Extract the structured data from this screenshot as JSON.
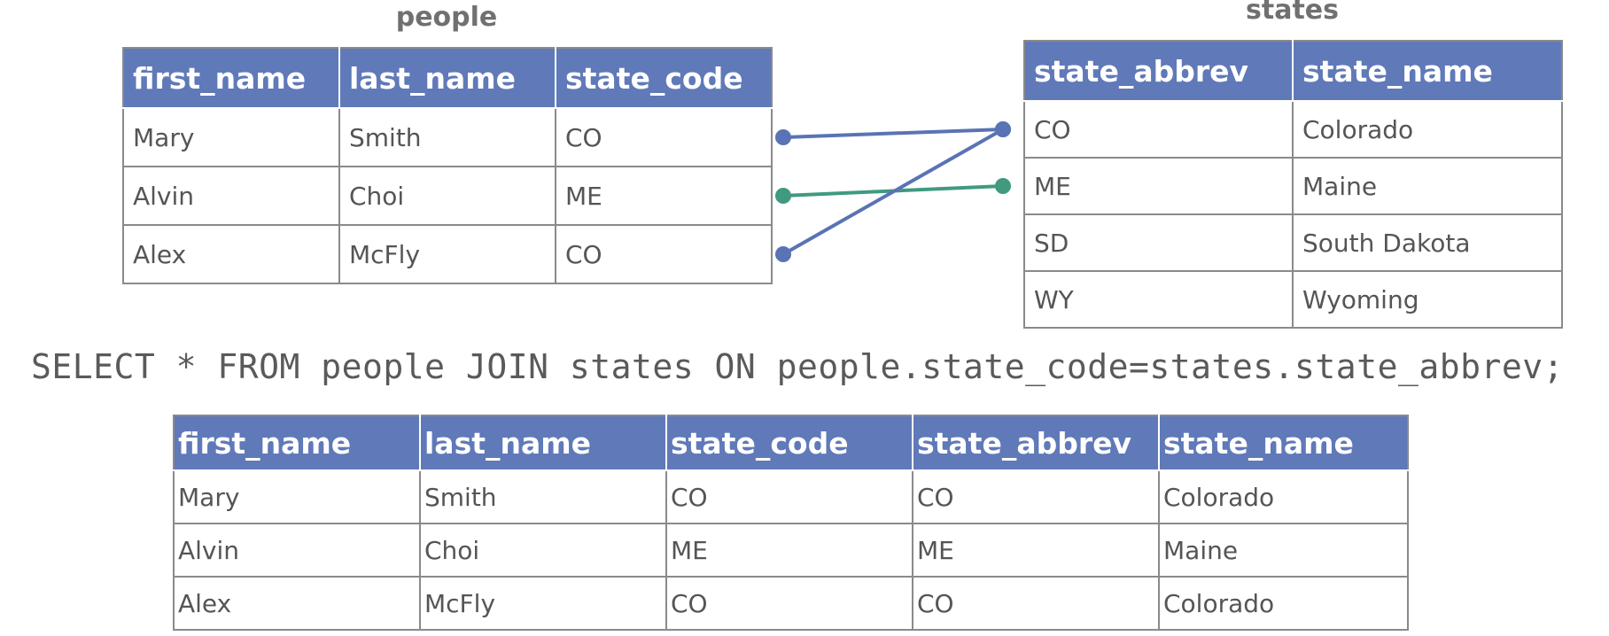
{
  "people": {
    "title": "people",
    "columns": [
      "first_name",
      "last_name",
      "state_code"
    ],
    "rows": [
      [
        "Mary",
        "Smith",
        "CO"
      ],
      [
        "Alvin",
        "Choi",
        "ME"
      ],
      [
        "Alex",
        "McFly",
        "CO"
      ]
    ]
  },
  "states": {
    "title": "states",
    "columns": [
      "state_abbrev",
      "state_name"
    ],
    "rows": [
      [
        "CO",
        "Colorado"
      ],
      [
        "ME",
        "Maine"
      ],
      [
        "SD",
        "South Dakota"
      ],
      [
        "WY",
        "Wyoming"
      ]
    ]
  },
  "query": "SELECT * FROM people JOIN states ON people.state_code=states.state_abbrev;",
  "result": {
    "columns": [
      "first_name",
      "last_name",
      "state_code",
      "state_abbrev",
      "state_name"
    ],
    "rows": [
      [
        "Mary",
        "Smith",
        "CO",
        "CO",
        "Colorado"
      ],
      [
        "Alvin",
        "Choi",
        "ME",
        "ME",
        "Maine"
      ],
      [
        "Alex",
        "McFly",
        "CO",
        "CO",
        "Colorado"
      ]
    ]
  },
  "links": [
    {
      "from_row": 0,
      "to_row": 0,
      "color": "#5a73b5"
    },
    {
      "from_row": 1,
      "to_row": 1,
      "color": "#3f9a80"
    },
    {
      "from_row": 2,
      "to_row": 0,
      "color": "#5a73b5"
    }
  ]
}
